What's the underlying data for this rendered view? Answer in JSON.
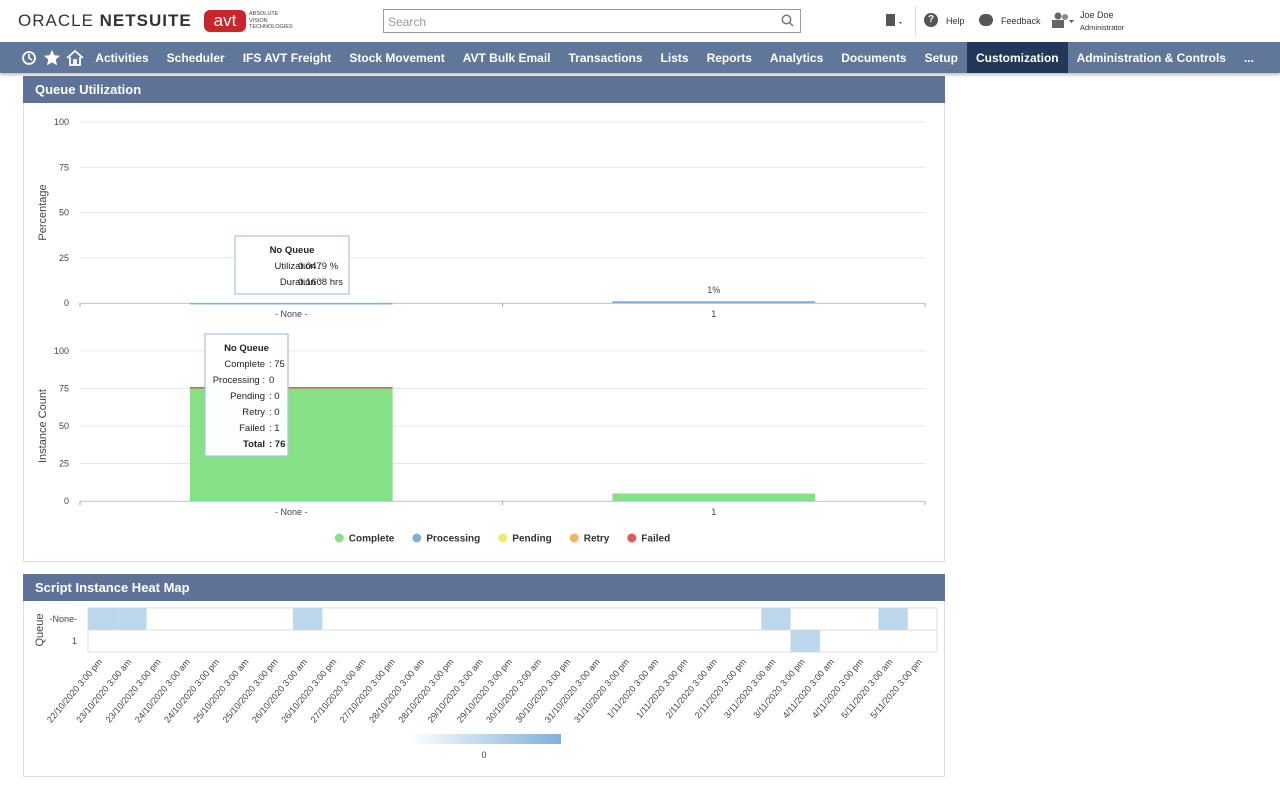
{
  "header": {
    "logo": [
      "ORACLE",
      "NETSUITE"
    ],
    "brand": "avt",
    "brand_sub": [
      "ABSOLUTE",
      "VISION",
      "TECHNOLOGIES"
    ],
    "search_placeholder": "Search",
    "help": "Help",
    "feedback": "Feedback",
    "user_name": "Joe Doe",
    "user_role": "Administrator"
  },
  "nav": {
    "items": [
      "Activities",
      "Scheduler",
      "IFS AVT Freight",
      "Stock Movement",
      "AVT Bulk Email",
      "Transactions",
      "Lists",
      "Reports",
      "Analytics",
      "Documents",
      "Setup",
      "Customization",
      "Administration & Controls"
    ],
    "active": "Customization",
    "more": "..."
  },
  "chart_data": [
    {
      "type": "bar",
      "title": "Queue Utilization",
      "y_label": "Percentage",
      "categories": [
        "- None -",
        "1"
      ],
      "values": [
        0.0479,
        1
      ],
      "value_labels": [
        null,
        "1%"
      ],
      "color": "#7fb0dc",
      "ylim": [
        0,
        100
      ],
      "yticks": [
        0,
        25,
        50,
        75,
        100
      ],
      "grid": true,
      "tooltip": {
        "title": "No Queue",
        "rows": [
          [
            "Utilization :",
            "0.0479 %"
          ],
          [
            "Duration :",
            "0.1608 hrs"
          ]
        ]
      }
    },
    {
      "type": "stacked_bar",
      "y_label": "Instance Count",
      "categories": [
        "- None -",
        "1"
      ],
      "series": [
        {
          "name": "Complete",
          "color": "#86e086",
          "values": [
            75,
            5
          ]
        },
        {
          "name": "Processing",
          "color": "#7fb0dc",
          "values": [
            0,
            0
          ]
        },
        {
          "name": "Pending",
          "color": "#f2ea6b",
          "values": [
            0,
            0
          ]
        },
        {
          "name": "Retry",
          "color": "#f5b45f",
          "values": [
            0,
            0
          ]
        },
        {
          "name": "Failed",
          "color": "#e05a5a",
          "values": [
            1,
            0
          ]
        }
      ],
      "ylim": [
        0,
        100
      ],
      "yticks": [
        0,
        25,
        50,
        75,
        100
      ],
      "grid": true,
      "legend": "bottom",
      "tooltip": {
        "title": "No Queue",
        "rows": [
          [
            "Complete",
            ": 75"
          ],
          [
            "Processing :",
            "0"
          ],
          [
            "Pending",
            ": 0"
          ],
          [
            "Retry",
            ": 0"
          ],
          [
            "Failed",
            ": 1"
          ],
          [
            "Total",
            ": 76"
          ]
        ]
      }
    },
    {
      "type": "heatmap",
      "title": "Script Instance Heat Map",
      "y_label": "Queue",
      "y_categories": [
        "-None-",
        "1"
      ],
      "x_categories": [
        "22/10/2020 3:00 pm",
        "23/10/2020 3:00 am",
        "23/10/2020 3:00 pm",
        "24/10/2020 3:00 am",
        "24/10/2020 3:00 pm",
        "25/10/2020 3:00 am",
        "25/10/2020 3:00 pm",
        "26/10/2020 3:00 am",
        "26/10/2020 3:00 pm",
        "27/10/2020 3:00 am",
        "27/10/2020 3:00 pm",
        "28/10/2020 3:00 am",
        "28/10/2020 3:00 pm",
        "29/10/2020 3:00 am",
        "29/10/2020 3:00 pm",
        "30/10/2020 3:00 am",
        "30/10/2020 3:00 pm",
        "31/10/2020 3:00 am",
        "31/10/2020 3:00 pm",
        "1/11/2020 3:00 am",
        "1/11/2020 3:00 pm",
        "2/11/2020 3:00 am",
        "2/11/2020 3:00 pm",
        "3/11/2020 3:00 am",
        "3/11/2020 3:00 pm",
        "4/11/2020 3:00 am",
        "4/11/2020 3:00 pm",
        "5/11/2020 3:00 am",
        "5/11/2020 3:00 pm"
      ],
      "values": [
        [
          1,
          1,
          null,
          null,
          null,
          null,
          null,
          1,
          null,
          null,
          null,
          null,
          null,
          null,
          null,
          null,
          null,
          null,
          null,
          null,
          null,
          null,
          null,
          1,
          null,
          null,
          null,
          1,
          null
        ],
        [
          null,
          null,
          null,
          null,
          null,
          null,
          null,
          null,
          null,
          null,
          null,
          null,
          null,
          null,
          null,
          null,
          null,
          null,
          null,
          null,
          null,
          null,
          null,
          null,
          1,
          null,
          null,
          null,
          null
        ]
      ],
      "color": "#bcd6ec",
      "colorbar_ticks": [
        0
      ]
    }
  ]
}
